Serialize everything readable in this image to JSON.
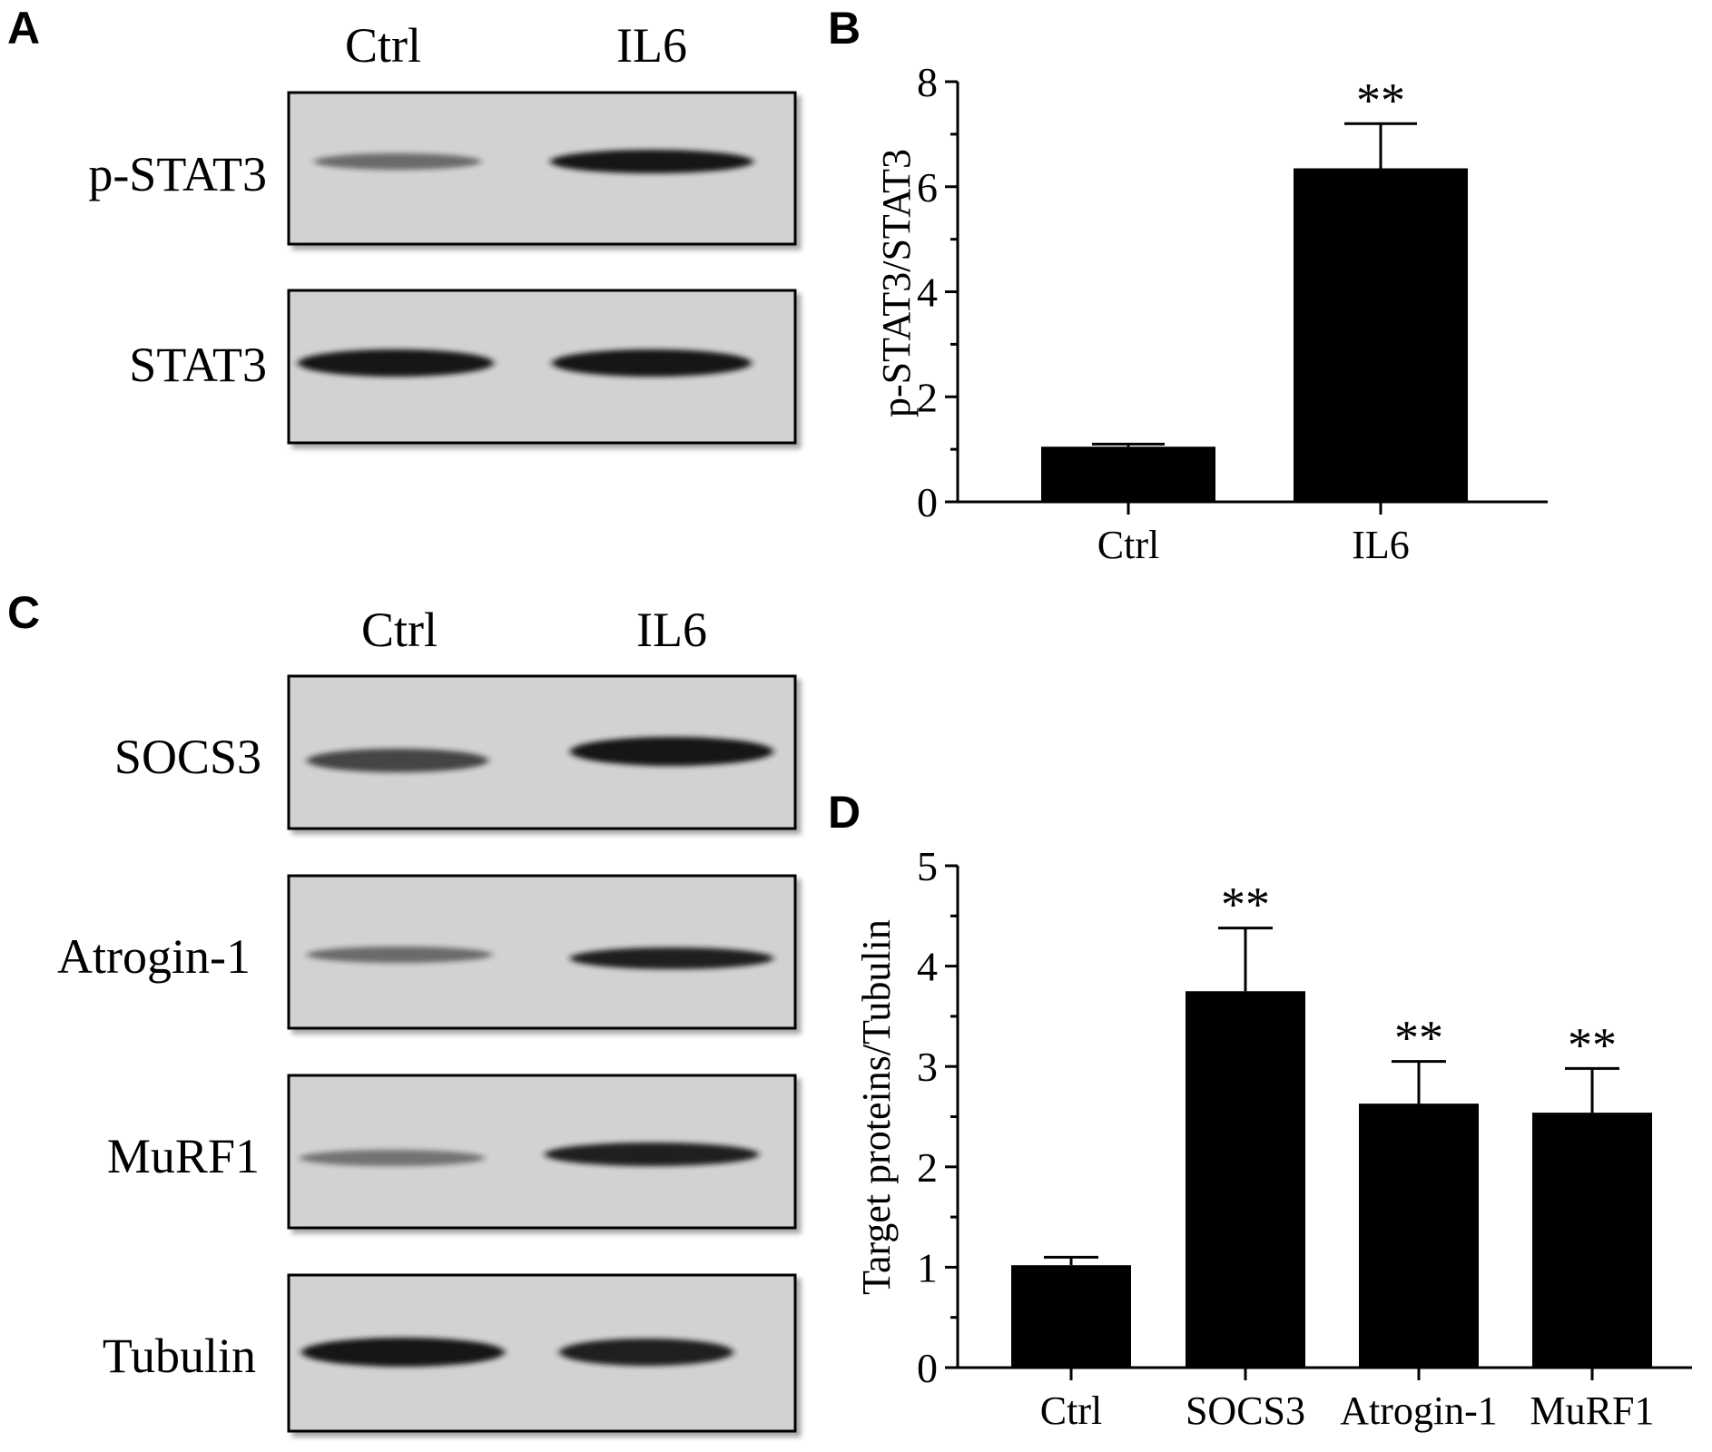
{
  "colors": {
    "bar": "#000000",
    "axis": "#000000",
    "blot_bg": "#d2d2d2",
    "band": "#141414"
  },
  "panels": {
    "A": {
      "letter": "A",
      "lanes": [
        "Ctrl",
        "IL6"
      ],
      "blots": [
        {
          "label": "p-STAT3",
          "band_intensity": [
            0.55,
            1.0
          ]
        },
        {
          "label": "STAT3",
          "band_intensity": [
            1.0,
            1.0
          ]
        }
      ]
    },
    "C": {
      "letter": "C",
      "lanes": [
        "Ctrl",
        "IL6"
      ],
      "blots": [
        {
          "label": "SOCS3",
          "band_intensity": [
            0.75,
            1.0
          ]
        },
        {
          "label": "Atrogin-1",
          "band_intensity": [
            0.55,
            0.95
          ]
        },
        {
          "label": "MuRF1",
          "band_intensity": [
            0.5,
            0.95
          ]
        },
        {
          "label": "Tubulin",
          "band_intensity": [
            1.0,
            0.95
          ]
        }
      ]
    }
  },
  "chart_data": [
    {
      "panel": "B",
      "type": "bar",
      "categories": [
        "Ctrl",
        "IL6"
      ],
      "values": [
        1.05,
        6.35
      ],
      "errors": [
        0.05,
        0.85
      ],
      "significance": [
        "",
        "**"
      ],
      "ylabel": "p-STAT3/STAT3",
      "xlabel": "",
      "ylim": [
        0,
        8
      ],
      "yticks": [
        "0",
        "2",
        "4",
        "6",
        "8"
      ],
      "grid": false
    },
    {
      "panel": "D",
      "type": "bar",
      "categories": [
        "Ctrl",
        "SOCS3",
        "Atrogin-1",
        "MuRF1"
      ],
      "values": [
        1.02,
        3.75,
        2.63,
        2.54
      ],
      "errors": [
        0.08,
        0.63,
        0.42,
        0.44
      ],
      "significance": [
        "",
        "**",
        "**",
        "**"
      ],
      "ylabel": "Target proteins/Tubulin",
      "xlabel": "",
      "ylim": [
        0,
        5
      ],
      "yticks": [
        "0",
        "1",
        "2",
        "3",
        "4",
        "5"
      ],
      "grid": false
    }
  ]
}
